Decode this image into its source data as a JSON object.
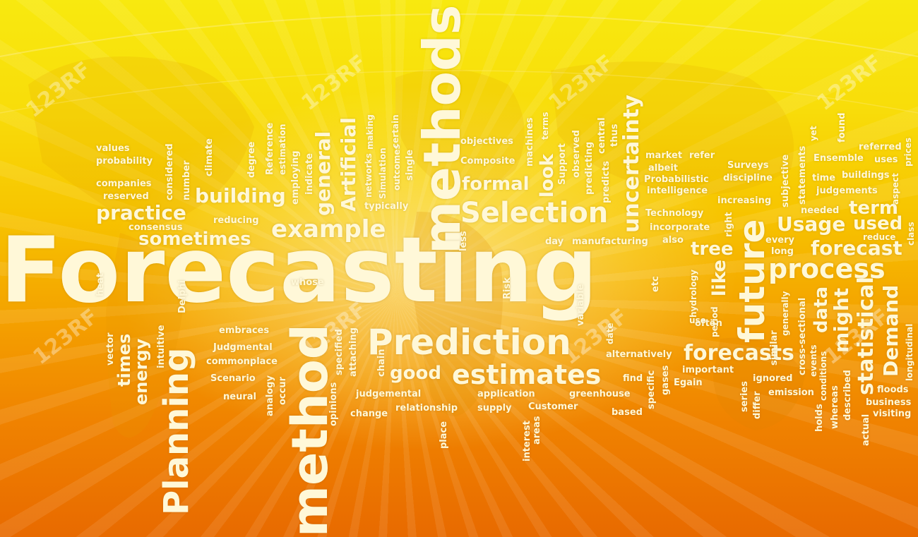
{
  "watermark": "123RF",
  "colors": {
    "background_top": "#f8e90f",
    "background_bottom": "#e86a00",
    "text": "#fff8d8"
  },
  "words": {
    "forecasting": "Forecasting",
    "prediction": "Prediction",
    "estimates": "estimates",
    "methods": "methods",
    "method": "method",
    "planning": "Planning",
    "selection": "Selection",
    "example": "example",
    "process": "process",
    "future": "future",
    "forecasts": "forecasts",
    "forecast": "forecast",
    "usage": "Usage",
    "used": "used",
    "term": "term",
    "uncertainty": "uncertainty",
    "statistical": "statistical",
    "demand": "Demand",
    "might": "might",
    "data": "data",
    "like": "like",
    "tree": "tree",
    "formal": "formal",
    "look": "look",
    "general": "general",
    "artificial": "Artificial",
    "building": "building",
    "practice": "practice",
    "sometimes": "sometimes",
    "good": "good",
    "times": "times",
    "energy": "energy",
    "values": "values",
    "probability": "probability",
    "companies": "companies",
    "reserved": "reserved",
    "consensus": "consensus",
    "reducing": "reducing",
    "considered": "considered",
    "number": "number",
    "climate": "climate",
    "degree": "degree",
    "reference": "Reference",
    "estimation": "estimation",
    "employing": "employing",
    "indicate": "indicate",
    "networks": "networks",
    "making": "making",
    "simulation": "Simulation",
    "outcomes": "outcomes",
    "certain": "certain",
    "single": "single",
    "typically": "typically",
    "less": "less",
    "objectives": "objectives",
    "composite": "Composite",
    "machines": "machines",
    "terms": "terms",
    "support": "Support",
    "observed": "observed",
    "predicting": "predicting",
    "central": "central",
    "predicts": "predicts",
    "thus": "thus",
    "day": "day",
    "manufacturing": "manufacturing",
    "also": "also",
    "market": "market",
    "refer": "refer",
    "albeit": "albeit",
    "probabilistic": "Probabilistic",
    "intelligence": "intelligence",
    "technology": "Technology",
    "incorporate": "incorporate",
    "surveys": "Surveys",
    "discipline": "discipline",
    "increasing": "increasing",
    "subjective": "subjective",
    "statements": "statements",
    "yet": "yet",
    "found": "found",
    "ensemble": "Ensemble",
    "referred": "referred",
    "uses": "uses",
    "time": "time",
    "buildings": "buildings",
    "judgements": "judgements",
    "needed": "needed",
    "aspect": "aspect",
    "prices": "prices",
    "reduce": "reduce",
    "class": "class",
    "right": "right",
    "every": "every",
    "long": "long",
    "heat": "heat",
    "delphi": "Delphi",
    "whose": "whose",
    "embraces": "embraces",
    "judgmental": "Judgmental",
    "commonplace": "commonplace",
    "scenario": "Scenario",
    "neural": "neural",
    "analogy": "analogy",
    "occur": "occur",
    "opinions": "opinions",
    "specified": "specified",
    "attaching": "attaching",
    "chain": "chain",
    "judgemental": "judgemental",
    "relationship": "relationship",
    "change": "change",
    "application": "application",
    "supply": "supply",
    "customer": "Customer",
    "greenhouse": "greenhouse",
    "based": "based",
    "place": "place",
    "interest": "interest",
    "areas": "areas",
    "risk": "Risk",
    "variable": "variable",
    "date": "date",
    "etc": "etc",
    "alternatively": "alternatively",
    "find": "find",
    "specific": "specific",
    "gases": "gases",
    "egain": "Egain",
    "important": "important",
    "often": "often",
    "use": "use",
    "hydrology": "hydrology",
    "period": "period",
    "series": "series",
    "differ": "differ",
    "ignored": "ignored",
    "emission": "emission",
    "similar": "similar",
    "generally": "generally",
    "cross_sectional": "cross-sectional",
    "events": "events",
    "conditions": "conditions",
    "holds": "holds",
    "whereas": "whereas",
    "described": "described",
    "actual": "actual",
    "floods": "floods",
    "business": "business",
    "visiting": "visiting",
    "longitudinal": "longitudinal",
    "vector": "vector",
    "intuitive": "intuitive"
  }
}
